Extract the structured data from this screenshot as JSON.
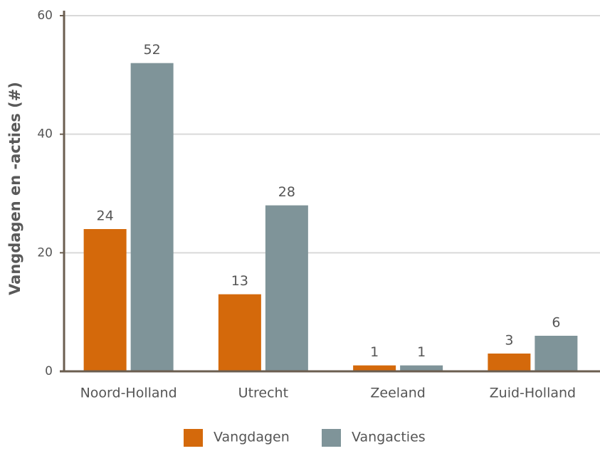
{
  "chart_data": {
    "type": "bar",
    "ylabel": "Vangdagen en -acties (#)",
    "categories": [
      "Noord-Holland",
      "Utrecht",
      "Zeeland",
      "Zuid-Holland"
    ],
    "series": [
      {
        "name": "Vangdagen",
        "color": "#d4690b",
        "values": [
          24,
          13,
          1,
          3
        ]
      },
      {
        "name": "Vangacties",
        "color": "#7f9499",
        "values": [
          52,
          28,
          1,
          6
        ]
      }
    ],
    "ylim": [
      0,
      60
    ],
    "yticks": [
      0,
      20,
      40,
      60
    ],
    "grid": true,
    "legend": "bottom"
  }
}
